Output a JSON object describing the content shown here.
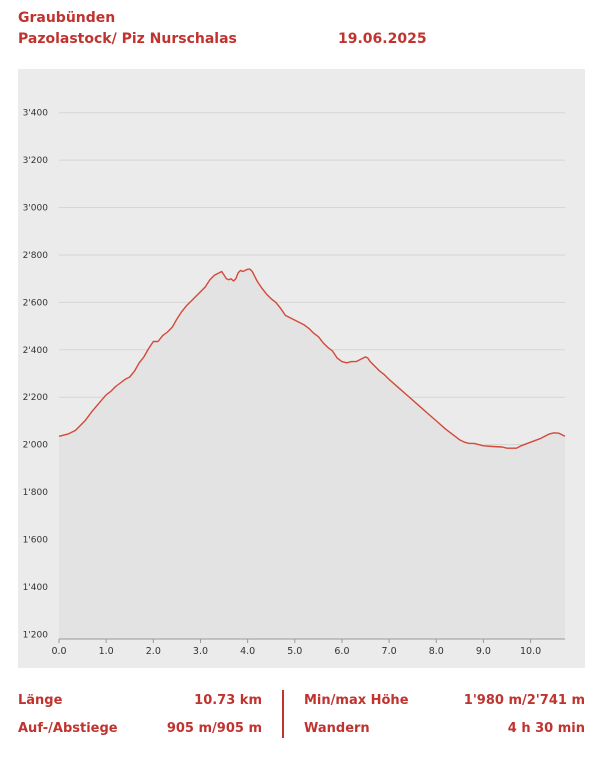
{
  "header": {
    "region": "Graubünden",
    "route_name": "Pazolastock/ Piz Nurschalas",
    "date": "19.06.2025"
  },
  "colors": {
    "accent": "#c0332f",
    "profile_line": "#d14a3a",
    "profile_fill": "#e3e3e3",
    "panel_bg": "#ebebeb"
  },
  "chart_data": {
    "type": "area",
    "xlabel": "",
    "ylabel": "",
    "xlim": [
      0,
      10.73
    ],
    "ylim": [
      1180,
      3500
    ],
    "x_ticks": [
      0,
      1,
      2,
      3,
      4,
      5,
      6,
      7,
      8,
      9,
      10
    ],
    "x_tick_labels": [
      "0.0",
      "1.0",
      "2.0",
      "3.0",
      "4.0",
      "5.0",
      "6.0",
      "7.0",
      "8.0",
      "9.0",
      "10.0"
    ],
    "y_ticks": [
      1200,
      1400,
      1600,
      1800,
      2000,
      2200,
      2400,
      2600,
      2800,
      3000,
      3200,
      3400
    ],
    "y_tick_labels": [
      "1'200",
      "1'400",
      "1'600",
      "1'800",
      "2'000",
      "2'200",
      "2'400",
      "2'600",
      "2'800",
      "3'000",
      "3'200",
      "3'400"
    ],
    "grid": true,
    "series": [
      {
        "x": [
          0,
          0.2,
          0.35,
          0.45,
          0.55,
          0.7,
          0.85,
          1.0,
          1.1,
          1.2,
          1.3,
          1.4,
          1.5,
          1.6,
          1.7,
          1.8,
          1.9,
          2.0,
          2.1,
          2.2,
          2.3,
          2.4,
          2.5,
          2.6,
          2.7,
          2.8,
          2.9,
          3.0,
          3.1,
          3.2,
          3.3,
          3.4,
          3.45,
          3.5,
          3.55,
          3.6,
          3.65,
          3.7,
          3.75,
          3.8,
          3.85,
          3.9,
          4.0,
          4.05,
          4.1,
          4.15,
          4.2,
          4.3,
          4.4,
          4.5,
          4.6,
          4.7,
          4.8,
          4.9,
          5.0,
          5.1,
          5.2,
          5.3,
          5.4,
          5.5,
          5.6,
          5.7,
          5.8,
          5.9,
          6.0,
          6.1,
          6.2,
          6.3,
          6.4,
          6.5,
          6.55,
          6.6,
          6.7,
          6.8,
          6.9,
          7.0,
          7.2,
          7.4,
          7.6,
          7.8,
          8.0,
          8.2,
          8.4,
          8.5,
          8.6,
          8.7,
          8.8,
          8.9,
          9.0,
          9.2,
          9.4,
          9.5,
          9.6,
          9.7,
          9.8,
          10.0,
          10.2,
          10.4,
          10.5,
          10.6,
          10.73
        ],
        "values": [
          2035,
          2045,
          2060,
          2080,
          2100,
          2140,
          2175,
          2210,
          2225,
          2245,
          2260,
          2275,
          2285,
          2310,
          2345,
          2370,
          2405,
          2435,
          2435,
          2460,
          2475,
          2495,
          2530,
          2560,
          2585,
          2605,
          2625,
          2645,
          2665,
          2695,
          2715,
          2725,
          2730,
          2715,
          2700,
          2695,
          2700,
          2690,
          2700,
          2725,
          2735,
          2730,
          2740,
          2740,
          2730,
          2710,
          2690,
          2660,
          2635,
          2615,
          2600,
          2575,
          2545,
          2535,
          2525,
          2515,
          2505,
          2490,
          2470,
          2455,
          2430,
          2410,
          2395,
          2365,
          2350,
          2345,
          2350,
          2350,
          2360,
          2370,
          2365,
          2350,
          2330,
          2310,
          2295,
          2275,
          2240,
          2205,
          2170,
          2135,
          2100,
          2065,
          2035,
          2020,
          2010,
          2005,
          2005,
          2000,
          1995,
          1992,
          1990,
          1985,
          1985,
          1985,
          1995,
          2010,
          2025,
          2045,
          2050,
          2048,
          2035
        ]
      }
    ]
  },
  "stats": {
    "length_label": "Länge",
    "length_value": "10.73 km",
    "ascent_label": "Auf-/Abstiege",
    "ascent_value": "905 m/905 m",
    "height_label": "Min/max Höhe",
    "height_value": "1'980 m/2'741 m",
    "activity_label": "Wandern",
    "activity_value": "4 h 30 min"
  }
}
